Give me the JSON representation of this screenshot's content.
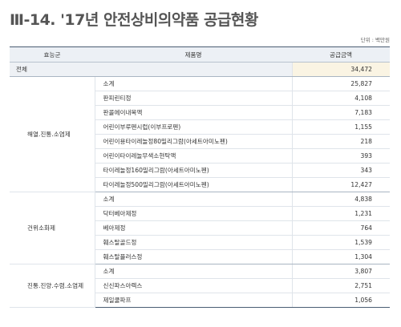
{
  "title": "Ⅲ-14. '17년 안전상비의약품 공급현황",
  "unit": "단위 : 백만원",
  "table": {
    "headers": [
      "효능군",
      "제품명",
      "공급금액"
    ],
    "total": {
      "label": "전체",
      "value": "34,472"
    },
    "groups": [
      {
        "name": "해열.진통.소염제",
        "items": [
          {
            "product": "소계",
            "amount": "25,827"
          },
          {
            "product": "판피린티정",
            "amount": "4,108"
          },
          {
            "product": "판콜에이내복액",
            "amount": "7,183"
          },
          {
            "product": "어린이부루펜시럽(이부프로펜)",
            "amount": "1,155"
          },
          {
            "product": "어린이용타이레놀정80밀리그람(아세트아미노펜)",
            "amount": "218"
          },
          {
            "product": "어린이타이레놀무색소현탁액",
            "amount": "393"
          },
          {
            "product": "타이레놀정160밀리그람(아세트아미노펜)",
            "amount": "343"
          },
          {
            "product": "타이레놀정500밀리그람(아세트아미노펜)",
            "amount": "12,427"
          }
        ]
      },
      {
        "name": "건위소화제",
        "items": [
          {
            "product": "소계",
            "amount": "4,838"
          },
          {
            "product": "닥터베아제정",
            "amount": "1,231"
          },
          {
            "product": "베아제정",
            "amount": "764"
          },
          {
            "product": "훼스탈골드정",
            "amount": "1,539"
          },
          {
            "product": "훼스탈플러스정",
            "amount": "1,304"
          }
        ]
      },
      {
        "name": "진통.진양.수렴.소염제",
        "items": [
          {
            "product": "소계",
            "amount": "3,807"
          },
          {
            "product": "신신파스아렉스",
            "amount": "2,751"
          },
          {
            "product": "제일쿨파프",
            "amount": "1,056"
          }
        ]
      }
    ]
  }
}
